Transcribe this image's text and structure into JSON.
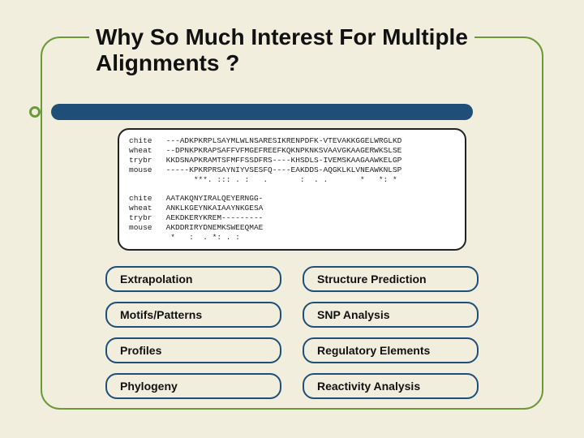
{
  "colors": {
    "background": "#f2eedd",
    "frame_border": "#6a9a3a",
    "accent_bar": "#1f4e79",
    "pill_border": "#1f4e79",
    "alignment_bg": "#ffffff",
    "text": "#111111"
  },
  "title": {
    "line1": "Why So Much Interest For Multiple",
    "line2": "Alignments ?",
    "fontsize": 28,
    "fontweight": "bold"
  },
  "alignment": {
    "font_family": "Courier New",
    "fontsize": 9.5,
    "labels": [
      "chite",
      "wheat",
      "trybr",
      "mouse"
    ],
    "block1": [
      "---ADKPKRPLSAYMLWLNSARESIKRENPDFK-VTEVAKKGGELWRGLKD",
      "--DPNKPKRAPSAFFVFMGEFREEFKQKNPKNKSVAAVGKAAGERWKSLSE",
      "KKDSNAPKRAMTSFMFFSSDFRS----KHSDLS-IVEMSKAAGAAWKELGP",
      "-----KPKRPRSAYNIYVSESFQ----EAKDDS-AQGKLKLVNEAWKNLSP"
    ],
    "consensus1": "      ***. ::: . :   .       :  . .       *   *: *",
    "block2": [
      "AATAKQNYIRALQEYERNGG-",
      "ANKLKGEYNKAIAAYNKGESA",
      "AEKDKERYKREM---------",
      "AKDDRIRYDNEMKSWEEQMAE"
    ],
    "consensus2": " *   :  . *: . :"
  },
  "topics": {
    "left": [
      "Extrapolation",
      "Motifs/Patterns",
      "Profiles",
      "Phylogeny"
    ],
    "right": [
      "Structure Prediction",
      "SNP Analysis",
      "Regulatory Elements",
      "Reactivity Analysis"
    ],
    "pill_fontsize": 14,
    "pill_radius": 14
  }
}
